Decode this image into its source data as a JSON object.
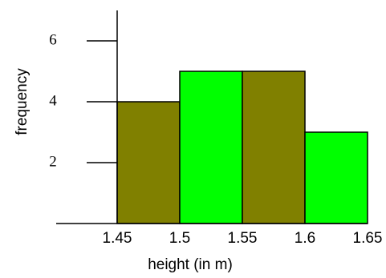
{
  "chart_data": {
    "type": "histogram",
    "bins": [
      1.45,
      1.5,
      1.55,
      1.6,
      1.65
    ],
    "values": [
      4,
      5,
      5,
      3
    ],
    "colors": [
      "#808000",
      "#00ff00",
      "#808000",
      "#00ff00"
    ],
    "xlabel": "height (in m)",
    "ylabel": "frequency",
    "xlim": [
      1.4,
      1.65
    ],
    "xticks": [
      1.45,
      1.5,
      1.55,
      1.6,
      1.65
    ],
    "ylim": [
      0,
      7
    ],
    "yticks": [
      2,
      4,
      6
    ]
  }
}
